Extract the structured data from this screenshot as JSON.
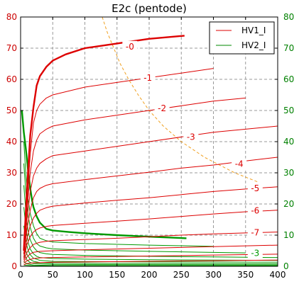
{
  "chart_data": {
    "type": "line",
    "title": "E2c (pentode)",
    "x_axis": {
      "range": [
        0,
        400
      ],
      "ticks": [
        0,
        50,
        100,
        150,
        200,
        250,
        300,
        350,
        400
      ],
      "tick_labels": [
        "0",
        "50",
        "100",
        "150",
        "200",
        "250",
        "300",
        "350",
        "400"
      ]
    },
    "y_axis_left": {
      "range": [
        0,
        80
      ],
      "ticks": [
        0,
        10,
        20,
        30,
        40,
        50,
        60,
        70,
        80
      ],
      "tick_labels": [
        "0",
        "10",
        "20",
        "30",
        "40",
        "50",
        "60",
        "70",
        "80"
      ],
      "color": "#cc0000"
    },
    "y_axis_right": {
      "range": [
        0,
        80
      ],
      "ticks": [
        0,
        10,
        20,
        30,
        40,
        50,
        60,
        70,
        80
      ],
      "tick_labels": [
        "0",
        "10",
        "20",
        "30",
        "40",
        "50",
        "60",
        "70",
        "80"
      ],
      "color": "#008000"
    },
    "grid": true,
    "legend": {
      "placement": "top-right",
      "entries": [
        {
          "label": "HV1_I",
          "color": "#dd0000"
        },
        {
          "label": "HV2_I",
          "color": "#008800"
        }
      ]
    },
    "series": [
      {
        "name": "HV1_I",
        "grid_voltage": "0",
        "label": "-0",
        "bold": true,
        "color": "#dd0000",
        "points": [
          [
            5,
            5
          ],
          [
            10,
            25
          ],
          [
            15,
            42
          ],
          [
            20,
            51
          ],
          [
            25,
            58
          ],
          [
            30,
            61
          ],
          [
            40,
            64
          ],
          [
            50,
            66
          ],
          [
            70,
            68
          ],
          [
            100,
            70
          ],
          [
            150,
            71.5
          ],
          [
            200,
            73
          ],
          [
            255,
            74
          ]
        ]
      },
      {
        "name": "HV1_I",
        "grid_voltage": "-1",
        "label": "-1",
        "bold": false,
        "color": "#dd0000",
        "points": [
          [
            5,
            5
          ],
          [
            10,
            20
          ],
          [
            15,
            36
          ],
          [
            20,
            46
          ],
          [
            25,
            50
          ],
          [
            30,
            52
          ],
          [
            40,
            54
          ],
          [
            50,
            55
          ],
          [
            100,
            57.5
          ],
          [
            150,
            59
          ],
          [
            200,
            60.5
          ],
          [
            250,
            62
          ],
          [
            300,
            63.5
          ]
        ]
      },
      {
        "name": "HV1_I",
        "grid_voltage": "-2",
        "label": "-2",
        "bold": false,
        "color": "#dd0000",
        "points": [
          [
            5,
            5
          ],
          [
            10,
            18
          ],
          [
            15,
            30
          ],
          [
            20,
            37
          ],
          [
            25,
            40.5
          ],
          [
            30,
            42.5
          ],
          [
            40,
            44
          ],
          [
            50,
            45
          ],
          [
            100,
            47
          ],
          [
            150,
            48.5
          ],
          [
            200,
            50
          ],
          [
            250,
            51.5
          ],
          [
            300,
            53
          ],
          [
            350,
            54
          ]
        ]
      },
      {
        "name": "HV1_I",
        "grid_voltage": "-3",
        "label": "-3",
        "bold": false,
        "color": "#dd0000",
        "points": [
          [
            5,
            4
          ],
          [
            10,
            15
          ],
          [
            15,
            24
          ],
          [
            20,
            29
          ],
          [
            25,
            31.5
          ],
          [
            30,
            33
          ],
          [
            40,
            34.5
          ],
          [
            50,
            35.5
          ],
          [
            100,
            37
          ],
          [
            150,
            38.5
          ],
          [
            200,
            40
          ],
          [
            250,
            41.5
          ],
          [
            300,
            43
          ],
          [
            350,
            44
          ],
          [
            400,
            45
          ]
        ]
      },
      {
        "name": "HV1_I",
        "grid_voltage": "-4",
        "label": "-4",
        "bold": false,
        "color": "#dd0000",
        "points": [
          [
            5,
            4
          ],
          [
            10,
            12
          ],
          [
            15,
            18
          ],
          [
            20,
            22
          ],
          [
            25,
            24
          ],
          [
            30,
            25
          ],
          [
            40,
            26
          ],
          [
            50,
            26.5
          ],
          [
            100,
            27.8
          ],
          [
            150,
            29
          ],
          [
            200,
            30.2
          ],
          [
            250,
            31.5
          ],
          [
            300,
            32.5
          ],
          [
            350,
            33.8
          ],
          [
            400,
            35
          ]
        ]
      },
      {
        "name": "HV1_I",
        "grid_voltage": "-5",
        "label": "-5",
        "bold": false,
        "color": "#dd0000",
        "points": [
          [
            5,
            3
          ],
          [
            10,
            9
          ],
          [
            15,
            13
          ],
          [
            20,
            15.5
          ],
          [
            25,
            17
          ],
          [
            30,
            18
          ],
          [
            40,
            18.8
          ],
          [
            50,
            19.3
          ],
          [
            100,
            20.3
          ],
          [
            150,
            21.2
          ],
          [
            200,
            22
          ],
          [
            250,
            23
          ],
          [
            300,
            24
          ],
          [
            350,
            24.8
          ],
          [
            400,
            25.5
          ]
        ]
      },
      {
        "name": "HV1_I",
        "grid_voltage": "-6",
        "label": "-6",
        "bold": false,
        "color": "#dd0000",
        "points": [
          [
            5,
            2.5
          ],
          [
            10,
            7
          ],
          [
            15,
            9.5
          ],
          [
            20,
            11
          ],
          [
            25,
            11.8
          ],
          [
            30,
            12.3
          ],
          [
            40,
            12.8
          ],
          [
            50,
            13.1
          ],
          [
            100,
            13.8
          ],
          [
            150,
            14.5
          ],
          [
            200,
            15.2
          ],
          [
            250,
            16
          ],
          [
            300,
            16.8
          ],
          [
            350,
            17.5
          ],
          [
            400,
            18
          ]
        ]
      },
      {
        "name": "HV1_I",
        "grid_voltage": "-7",
        "label": "-7",
        "bold": false,
        "color": "#dd0000",
        "points": [
          [
            5,
            2
          ],
          [
            10,
            4.5
          ],
          [
            15,
            6
          ],
          [
            20,
            7
          ],
          [
            25,
            7.4
          ],
          [
            30,
            7.7
          ],
          [
            40,
            8
          ],
          [
            50,
            8.2
          ],
          [
            100,
            8.6
          ],
          [
            150,
            9
          ],
          [
            200,
            9.5
          ],
          [
            250,
            10
          ],
          [
            300,
            10.4
          ],
          [
            350,
            10.7
          ],
          [
            400,
            11
          ]
        ]
      },
      {
        "name": "HV1_I",
        "grid_voltage": "-8",
        "label": "",
        "bold": false,
        "color": "#dd0000",
        "points": [
          [
            5,
            1.5
          ],
          [
            10,
            3
          ],
          [
            15,
            4
          ],
          [
            20,
            4.5
          ],
          [
            30,
            4.8
          ],
          [
            50,
            5
          ],
          [
            100,
            5.3
          ],
          [
            200,
            5.8
          ],
          [
            300,
            6.3
          ],
          [
            400,
            6.8
          ]
        ]
      },
      {
        "name": "HV1_I",
        "grid_voltage": "-9",
        "label": "",
        "bold": false,
        "color": "#dd0000",
        "points": [
          [
            5,
            1
          ],
          [
            10,
            1.8
          ],
          [
            15,
            2.2
          ],
          [
            20,
            2.5
          ],
          [
            30,
            2.7
          ],
          [
            50,
            2.8
          ],
          [
            100,
            3
          ],
          [
            200,
            3.3
          ],
          [
            300,
            3.6
          ],
          [
            400,
            3.9
          ]
        ]
      },
      {
        "name": "HV1_I",
        "grid_voltage": "-10",
        "label": "",
        "bold": false,
        "color": "#dd0000",
        "points": [
          [
            5,
            0.5
          ],
          [
            10,
            0.9
          ],
          [
            20,
            1.1
          ],
          [
            50,
            1.3
          ],
          [
            100,
            1.4
          ],
          [
            200,
            1.6
          ],
          [
            300,
            1.8
          ],
          [
            400,
            2
          ]
        ]
      },
      {
        "name": "HV2_I",
        "grid_voltage": "0",
        "label": "",
        "bold": true,
        "color": "#009900",
        "points": [
          [
            2,
            50
          ],
          [
            5,
            43
          ],
          [
            8,
            38
          ],
          [
            10,
            34
          ],
          [
            12,
            30
          ],
          [
            15,
            25
          ],
          [
            18,
            21
          ],
          [
            20,
            19
          ],
          [
            25,
            16
          ],
          [
            30,
            14
          ],
          [
            35,
            13
          ],
          [
            40,
            12
          ],
          [
            50,
            11.5
          ],
          [
            75,
            11
          ],
          [
            100,
            10.6
          ],
          [
            150,
            10
          ],
          [
            200,
            9.5
          ],
          [
            258,
            9
          ]
        ]
      },
      {
        "name": "HV2_I",
        "grid_voltage": "-1",
        "label": "",
        "bold": false,
        "color": "#009900",
        "points": [
          [
            5,
            40
          ],
          [
            8,
            30
          ],
          [
            10,
            25
          ],
          [
            12,
            21
          ],
          [
            15,
            17
          ],
          [
            20,
            13
          ],
          [
            25,
            10.5
          ],
          [
            30,
            9
          ],
          [
            40,
            8.2
          ],
          [
            50,
            7.8
          ],
          [
            100,
            7.3
          ],
          [
            200,
            6.8
          ],
          [
            300,
            6.4
          ]
        ]
      },
      {
        "name": "HV2_I",
        "grid_voltage": "-2",
        "label": "",
        "bold": false,
        "color": "#009900",
        "points": [
          [
            5,
            33
          ],
          [
            8,
            24
          ],
          [
            10,
            20
          ],
          [
            12,
            16
          ],
          [
            15,
            12.5
          ],
          [
            20,
            9
          ],
          [
            25,
            7.3
          ],
          [
            30,
            6.5
          ],
          [
            40,
            5.9
          ],
          [
            50,
            5.6
          ],
          [
            100,
            5.2
          ],
          [
            200,
            4.8
          ],
          [
            350,
            4.3
          ]
        ]
      },
      {
        "name": "HV2_I",
        "grid_voltage": "-3",
        "label": "-3",
        "bold": false,
        "color": "#009900",
        "points": [
          [
            5,
            26
          ],
          [
            8,
            18
          ],
          [
            10,
            14
          ],
          [
            12,
            11
          ],
          [
            15,
            8.5
          ],
          [
            20,
            6.2
          ],
          [
            25,
            5
          ],
          [
            30,
            4.4
          ],
          [
            40,
            4
          ],
          [
            50,
            3.8
          ],
          [
            100,
            3.5
          ],
          [
            200,
            3.2
          ],
          [
            300,
            3
          ],
          [
            400,
            2.8
          ]
        ]
      },
      {
        "name": "HV2_I",
        "grid_voltage": "-4",
        "label": "",
        "bold": false,
        "color": "#009900",
        "points": [
          [
            5,
            19
          ],
          [
            8,
            13
          ],
          [
            10,
            10
          ],
          [
            12,
            7.5
          ],
          [
            15,
            5.5
          ],
          [
            20,
            4
          ],
          [
            25,
            3.2
          ],
          [
            30,
            2.8
          ],
          [
            50,
            2.5
          ],
          [
            100,
            2.3
          ],
          [
            200,
            2.1
          ],
          [
            400,
            1.9
          ]
        ]
      },
      {
        "name": "HV2_I",
        "grid_voltage": "-5",
        "label": "",
        "bold": false,
        "color": "#009900",
        "points": [
          [
            5,
            13
          ],
          [
            8,
            8.5
          ],
          [
            10,
            6.5
          ],
          [
            12,
            5
          ],
          [
            15,
            3.7
          ],
          [
            20,
            2.6
          ],
          [
            30,
            1.9
          ],
          [
            50,
            1.6
          ],
          [
            100,
            1.5
          ],
          [
            400,
            1.3
          ]
        ]
      },
      {
        "name": "HV2_I",
        "grid_voltage": "-6",
        "label": "",
        "bold": false,
        "color": "#009900",
        "points": [
          [
            5,
            8
          ],
          [
            8,
            5
          ],
          [
            10,
            3.8
          ],
          [
            15,
            2.2
          ],
          [
            20,
            1.6
          ],
          [
            30,
            1.2
          ],
          [
            50,
            1
          ],
          [
            400,
            0.8
          ]
        ]
      },
      {
        "name": "HV2_I",
        "grid_voltage": "-7",
        "label": "",
        "bold": false,
        "color": "#009900",
        "points": [
          [
            5,
            4
          ],
          [
            10,
            2
          ],
          [
            15,
            1.2
          ],
          [
            20,
            0.9
          ],
          [
            50,
            0.6
          ],
          [
            400,
            0.45
          ]
        ]
      },
      {
        "name": "HV2_I",
        "grid_voltage": "-8",
        "label": "",
        "bold": false,
        "color": "#009900",
        "points": [
          [
            5,
            1.5
          ],
          [
            10,
            0.8
          ],
          [
            20,
            0.4
          ],
          [
            50,
            0.25
          ],
          [
            400,
            0.2
          ]
        ]
      },
      {
        "name": "HV2_I",
        "grid_voltage": "-9",
        "label": "",
        "bold": false,
        "color": "#009900",
        "points": [
          [
            5,
            0.4
          ],
          [
            20,
            0.15
          ],
          [
            400,
            0.05
          ]
        ]
      }
    ],
    "dissipation_limit": {
      "style": "dashed",
      "color": "#f0a020",
      "points": [
        [
          127,
          80
        ],
        [
          135,
          75
        ],
        [
          145,
          70
        ],
        [
          155,
          65
        ],
        [
          168,
          60
        ],
        [
          183,
          55
        ],
        [
          200,
          50
        ],
        [
          222,
          45
        ],
        [
          250,
          40
        ],
        [
          286,
          35
        ],
        [
          333,
          30
        ],
        [
          370,
          27
        ]
      ]
    }
  }
}
